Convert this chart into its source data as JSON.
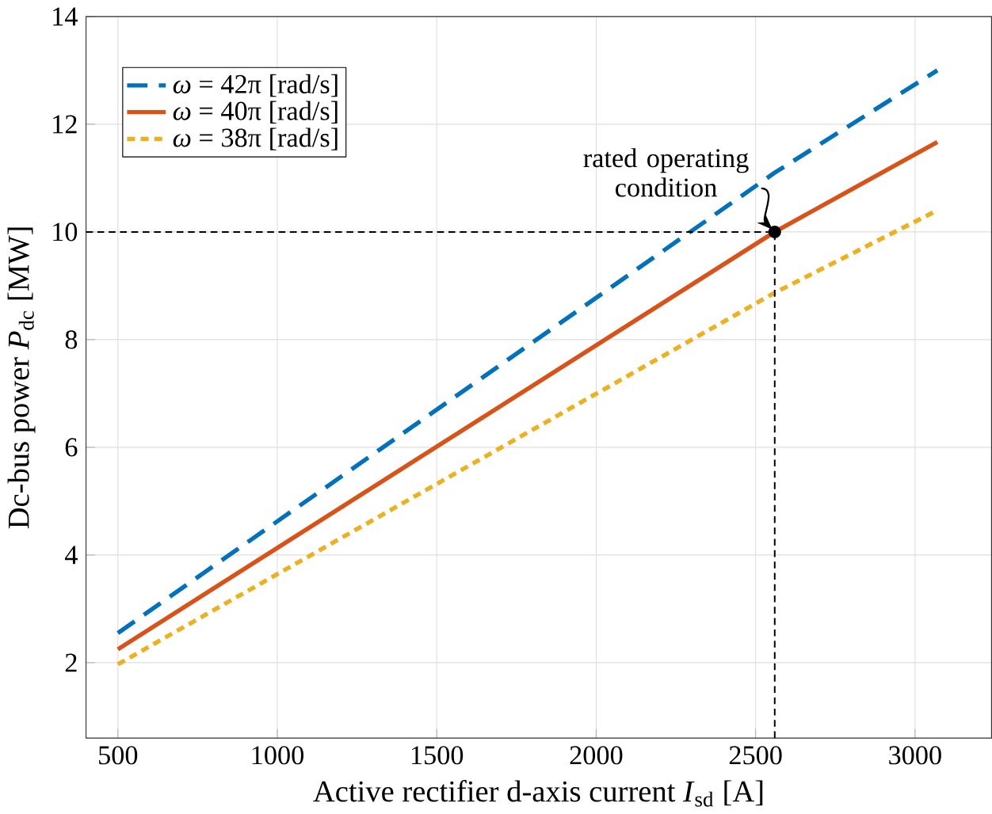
{
  "chart_data": {
    "type": "line",
    "xlabel": "Active rectifier d-axis current *I*$_{sd}$ [A]",
    "ylabel": "Dc-bus power *P*$_{dc}$ [MW]",
    "xlim": [
      400,
      3240
    ],
    "ylim": [
      0.6,
      14
    ],
    "xticks": [
      500,
      1000,
      1500,
      2000,
      2500,
      3000
    ],
    "yticks": [
      2,
      4,
      6,
      8,
      10,
      12,
      14
    ],
    "grid": true,
    "legend": "top left",
    "series": [
      {
        "name": "*ω* = 42π [rad/s]",
        "color": "#0072bd",
        "line_style": "dashed",
        "x": [
          500,
          2560,
          3070
        ],
        "values": [
          2.55,
          11.1,
          13.0
        ]
      },
      {
        "name": "*ω* = 40π [rad/s]",
        "color": "#d95319",
        "line_style": "solid",
        "x": [
          500,
          2560,
          3070
        ],
        "values": [
          2.25,
          10,
          11.67
        ]
      },
      {
        "name": "*ω* = 38π [rad/s]",
        "color": "#edb120",
        "line_style": "dotted",
        "x": [
          500,
          2560,
          3070
        ],
        "values": [
          1.97,
          8.87,
          10.4
        ]
      },
      {
        "type": "scatter",
        "color": "#000000",
        "x": [
          2560
        ],
        "values": [
          10
        ]
      }
    ],
    "ref_lines": [
      {
        "axis": "y",
        "value": 10,
        "color": "#000000",
        "line_style": "dashed"
      },
      {
        "axis": "x",
        "value": 2560,
        "color": "#000000",
        "line_style": "dashed"
      }
    ],
    "annotations": [
      {
        "text": "rated operating condition",
        "x": 2560,
        "y": 10
      }
    ]
  }
}
